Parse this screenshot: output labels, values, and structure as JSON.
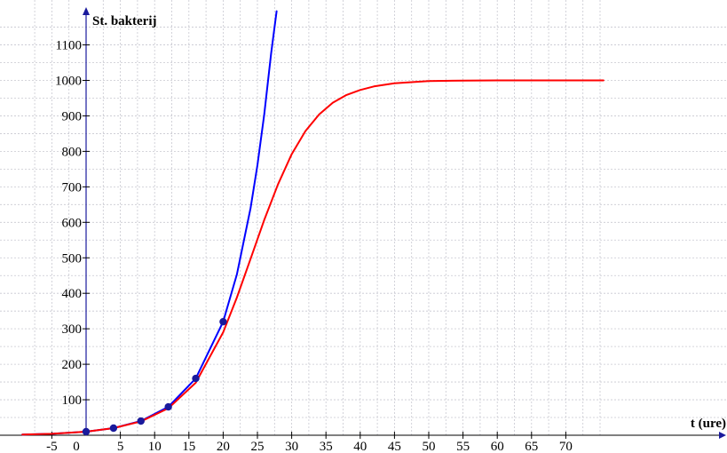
{
  "chart_data": {
    "type": "line",
    "title": "",
    "xlabel": "t (ure)",
    "ylabel": "St. bakterij",
    "xlim": [
      -9.3,
      75.5
    ],
    "ylim": [
      0,
      1195
    ],
    "grid": true,
    "x_ticks": [
      -5,
      0,
      5,
      10,
      15,
      20,
      25,
      30,
      35,
      40,
      45,
      50,
      55,
      60,
      65,
      70
    ],
    "x_tick_labels": [
      "-5",
      "0",
      "5",
      "10",
      "15",
      "20",
      "25",
      "30",
      "35",
      "40",
      "45",
      "50",
      "55",
      "60",
      "65",
      "70"
    ],
    "y_ticks": [
      100,
      200,
      300,
      400,
      500,
      600,
      700,
      800,
      900,
      1000,
      1100
    ],
    "y_tick_labels": [
      "100",
      "200",
      "300",
      "400",
      "500",
      "600",
      "700",
      "800",
      "900",
      "1000",
      "1100"
    ],
    "series": [
      {
        "kind": "points",
        "color": "#1a1a9c",
        "x": [
          0,
          4,
          8,
          12,
          16,
          20
        ],
        "y": [
          10,
          20,
          40,
          80,
          160,
          320
        ]
      },
      {
        "kind": "exponential-curve",
        "color": "#0000ff",
        "x": [
          -9.3,
          -5,
          0,
          4,
          8,
          12,
          16,
          20,
          22,
          24,
          25,
          26,
          27,
          27.8
        ],
        "y": [
          2.0,
          4.2,
          10,
          20,
          40,
          80,
          160,
          320,
          453,
          640,
          761,
          905,
          1076,
          1195
        ]
      },
      {
        "kind": "logistic-curve",
        "color": "#ff0000",
        "x": [
          -9.3,
          -5,
          0,
          4,
          8,
          12,
          16,
          20,
          22,
          24,
          26,
          28,
          30,
          32,
          34,
          36,
          38,
          40,
          42,
          45,
          50,
          55,
          60,
          65,
          70,
          75.5
        ],
        "y": [
          1.9,
          4.1,
          10,
          20,
          39,
          76,
          148,
          290,
          388,
          497,
          607,
          707,
          792,
          857,
          904,
          937,
          959,
          973,
          983,
          992,
          998,
          999.5,
          999.9,
          1000,
          1000,
          1000
        ]
      }
    ]
  }
}
